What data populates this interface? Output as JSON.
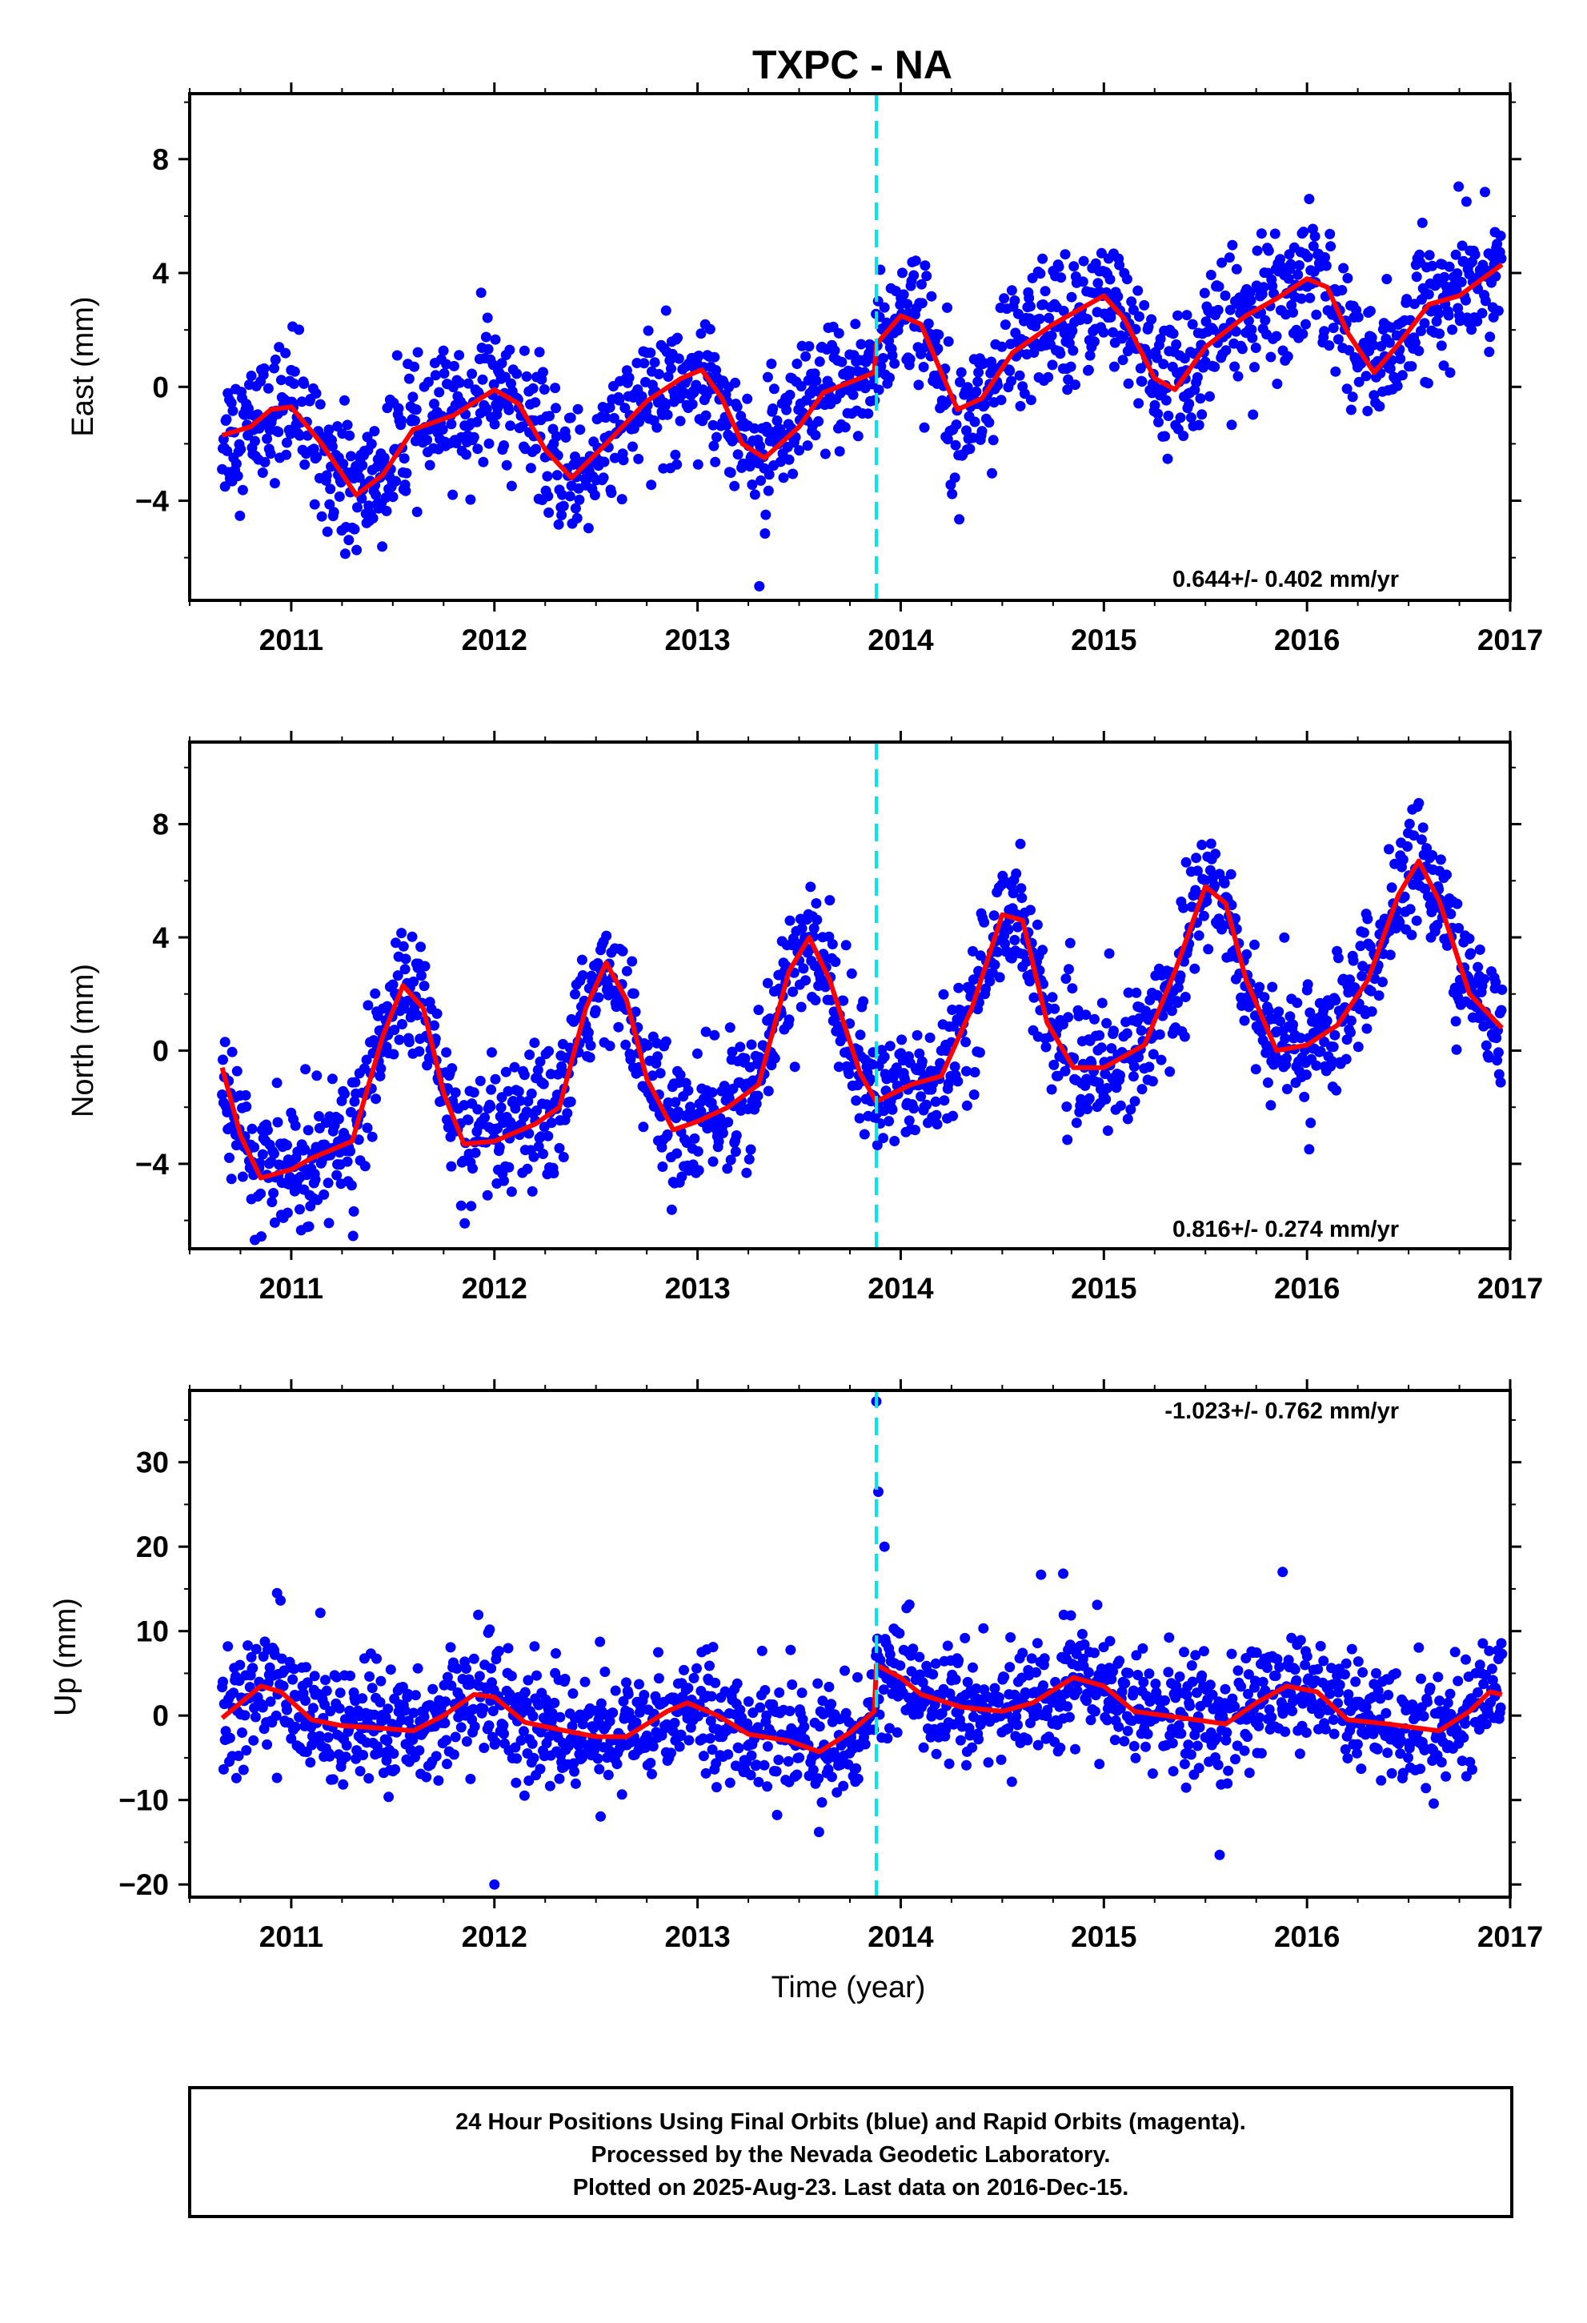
{
  "title": "TXPC - NA",
  "xlabel": "Time (year)",
  "caption": [
    "24 Hour Positions Using Final Orbits (blue) and Rapid Orbits (magenta).",
    "Processed by the Nevada Geodetic Laboratory.",
    "Plotted on 2025-Aug-23. Last data on 2016-Dec-15."
  ],
  "colors": {
    "points": "#0000ff",
    "fit": "#ff0000",
    "offset_line": "#00e5ee",
    "frame": "#000000"
  },
  "chart_data": [
    {
      "type": "scatter",
      "ylabel": "East (mm)",
      "rate_text": "0.644+/- 0.402 mm/yr",
      "xlim": [
        2010.5,
        2017.0
      ],
      "ylim": [
        -7.5,
        10.3
      ],
      "xticks": [
        2011,
        2012,
        2013,
        2014,
        2015,
        2016,
        2017
      ],
      "yticks": [
        -4,
        0,
        4,
        8
      ],
      "offset_epoch": 2013.88,
      "data_range": [
        2010.66,
        2016.96
      ],
      "noise": 1.15,
      "fit": [
        [
          2010.66,
          -1.7
        ],
        [
          2010.8,
          -1.4
        ],
        [
          2010.9,
          -0.8
        ],
        [
          2011.0,
          -0.7
        ],
        [
          2011.15,
          -2.0
        ],
        [
          2011.32,
          -3.8
        ],
        [
          2011.45,
          -3.1
        ],
        [
          2011.6,
          -1.5
        ],
        [
          2011.8,
          -1.0
        ],
        [
          2012.0,
          -0.1
        ],
        [
          2012.12,
          -0.6
        ],
        [
          2012.25,
          -2.2
        ],
        [
          2012.38,
          -3.2
        ],
        [
          2012.55,
          -2.0
        ],
        [
          2012.75,
          -0.5
        ],
        [
          2012.92,
          0.3
        ],
        [
          2013.02,
          0.6
        ],
        [
          2013.12,
          -0.4
        ],
        [
          2013.22,
          -2.0
        ],
        [
          2013.33,
          -2.5
        ],
        [
          2013.5,
          -1.4
        ],
        [
          2013.62,
          -0.2
        ],
        [
          2013.87,
          0.5
        ],
        [
          2013.88,
          1.5
        ],
        [
          2014.0,
          2.5
        ],
        [
          2014.1,
          2.2
        ],
        [
          2014.2,
          0.5
        ],
        [
          2014.28,
          -0.8
        ],
        [
          2014.4,
          -0.4
        ],
        [
          2014.55,
          1.2
        ],
        [
          2014.75,
          2.2
        ],
        [
          2015.0,
          3.2
        ],
        [
          2015.1,
          2.4
        ],
        [
          2015.25,
          0.3
        ],
        [
          2015.35,
          -0.1
        ],
        [
          2015.5,
          1.4
        ],
        [
          2015.7,
          2.5
        ],
        [
          2015.85,
          3.1
        ],
        [
          2016.0,
          3.8
        ],
        [
          2016.1,
          3.5
        ],
        [
          2016.2,
          1.9
        ],
        [
          2016.33,
          0.5
        ],
        [
          2016.45,
          1.5
        ],
        [
          2016.6,
          2.9
        ],
        [
          2016.75,
          3.2
        ],
        [
          2016.96,
          4.3
        ]
      ]
    },
    {
      "type": "scatter",
      "ylabel": "North (mm)",
      "rate_text": "0.816+/- 0.274 mm/yr",
      "xlim": [
        2010.5,
        2017.0
      ],
      "ylim": [
        -7.0,
        10.9
      ],
      "xticks": [
        2011,
        2012,
        2013,
        2014,
        2015,
        2016,
        2017
      ],
      "yticks": [
        -4,
        0,
        4,
        8
      ],
      "offset_epoch": 2013.88,
      "data_range": [
        2010.66,
        2016.96
      ],
      "noise": 1.1,
      "fit": [
        [
          2010.66,
          -0.6
        ],
        [
          2010.75,
          -3.0
        ],
        [
          2010.85,
          -4.5
        ],
        [
          2011.0,
          -4.2
        ],
        [
          2011.1,
          -3.8
        ],
        [
          2011.3,
          -3.2
        ],
        [
          2011.45,
          0.5
        ],
        [
          2011.55,
          2.3
        ],
        [
          2011.65,
          1.5
        ],
        [
          2011.75,
          -1.5
        ],
        [
          2011.85,
          -3.3
        ],
        [
          2012.0,
          -3.2
        ],
        [
          2012.2,
          -2.6
        ],
        [
          2012.32,
          -2.0
        ],
        [
          2012.45,
          1.5
        ],
        [
          2012.55,
          3.1
        ],
        [
          2012.65,
          1.8
        ],
        [
          2012.75,
          -1.0
        ],
        [
          2012.88,
          -2.8
        ],
        [
          2013.0,
          -2.5
        ],
        [
          2013.15,
          -2.0
        ],
        [
          2013.3,
          -1.2
        ],
        [
          2013.45,
          2.8
        ],
        [
          2013.55,
          4.0
        ],
        [
          2013.65,
          2.5
        ],
        [
          2013.8,
          -0.8
        ],
        [
          2013.88,
          -1.8
        ],
        [
          2014.05,
          -1.2
        ],
        [
          2014.2,
          -0.9
        ],
        [
          2014.35,
          1.5
        ],
        [
          2014.5,
          4.8
        ],
        [
          2014.6,
          4.6
        ],
        [
          2014.72,
          1.0
        ],
        [
          2014.85,
          -0.6
        ],
        [
          2015.0,
          -0.6
        ],
        [
          2015.2,
          0.2
        ],
        [
          2015.35,
          2.8
        ],
        [
          2015.5,
          5.8
        ],
        [
          2015.6,
          5.2
        ],
        [
          2015.7,
          2.5
        ],
        [
          2015.85,
          0.0
        ],
        [
          2016.0,
          0.2
        ],
        [
          2016.15,
          0.9
        ],
        [
          2016.3,
          2.5
        ],
        [
          2016.45,
          5.5
        ],
        [
          2016.55,
          6.7
        ],
        [
          2016.65,
          5.3
        ],
        [
          2016.8,
          2.0
        ],
        [
          2016.96,
          0.8
        ]
      ]
    },
    {
      "type": "scatter",
      "ylabel": "Up (mm)",
      "rate_text": "-1.023+/- 0.762 mm/yr",
      "xlim": [
        2010.5,
        2017.0
      ],
      "ylim": [
        -21.5,
        38.5
      ],
      "xticks": [
        2011,
        2012,
        2013,
        2014,
        2015,
        2016,
        2017
      ],
      "yticks": [
        -20,
        -10,
        0,
        10,
        20,
        30
      ],
      "offset_epoch": 2013.88,
      "data_range": [
        2010.66,
        2016.96
      ],
      "noise": 3.4,
      "outliers": [
        [
          2013.88,
          37.2
        ],
        [
          2013.89,
          26.5
        ],
        [
          2013.92,
          20.0
        ],
        [
          2012.0,
          -20.0
        ],
        [
          2015.57,
          -16.5
        ],
        [
          2014.8,
          16.8
        ],
        [
          2015.88,
          17.0
        ],
        [
          2010.93,
          14.5
        ]
      ],
      "fit": [
        [
          2010.66,
          -0.3
        ],
        [
          2010.75,
          1.5
        ],
        [
          2010.85,
          3.5
        ],
        [
          2010.95,
          2.8
        ],
        [
          2011.1,
          -0.5
        ],
        [
          2011.25,
          -1.2
        ],
        [
          2011.45,
          -1.5
        ],
        [
          2011.6,
          -1.8
        ],
        [
          2011.75,
          0.0
        ],
        [
          2011.9,
          2.5
        ],
        [
          2012.0,
          2.2
        ],
        [
          2012.15,
          -0.8
        ],
        [
          2012.35,
          -1.8
        ],
        [
          2012.5,
          -2.5
        ],
        [
          2012.65,
          -2.5
        ],
        [
          2012.85,
          0.5
        ],
        [
          2012.95,
          1.5
        ],
        [
          2013.1,
          0.0
        ],
        [
          2013.25,
          -2.2
        ],
        [
          2013.45,
          -3.0
        ],
        [
          2013.6,
          -4.3
        ],
        [
          2013.75,
          -2.0
        ],
        [
          2013.87,
          0.5
        ],
        [
          2013.88,
          6.0
        ],
        [
          2014.0,
          4.5
        ],
        [
          2014.1,
          2.5
        ],
        [
          2014.3,
          1.0
        ],
        [
          2014.5,
          0.5
        ],
        [
          2014.65,
          1.5
        ],
        [
          2014.85,
          4.5
        ],
        [
          2015.0,
          3.5
        ],
        [
          2015.15,
          0.5
        ],
        [
          2015.3,
          0.0
        ],
        [
          2015.45,
          -0.5
        ],
        [
          2015.6,
          -1.0
        ],
        [
          2015.75,
          1.5
        ],
        [
          2015.9,
          3.5
        ],
        [
          2016.05,
          2.8
        ],
        [
          2016.2,
          -0.5
        ],
        [
          2016.4,
          -1.0
        ],
        [
          2016.55,
          -1.5
        ],
        [
          2016.65,
          -1.8
        ],
        [
          2016.8,
          0.5
        ],
        [
          2016.9,
          2.8
        ],
        [
          2016.96,
          2.5
        ]
      ]
    }
  ]
}
